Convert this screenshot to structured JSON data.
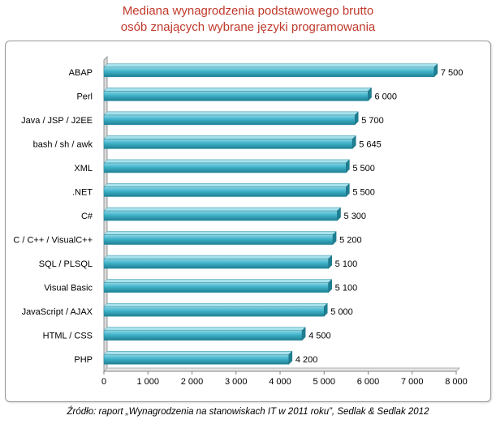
{
  "title_line1": "Mediana wynagrodzenia podstawowego brutto",
  "title_line2": "osób znających wybrane języki programowania",
  "source": "Źródło: raport „Wynagrodzenia na stanowiskach IT w 2011 roku”, Sedlak & Sedlak 2012",
  "colors": {
    "bar": "#3fb2c9",
    "bar_dark": "#1f7f92",
    "title": "#c0392b"
  },
  "chart_data": {
    "type": "bar",
    "orientation": "horizontal",
    "title": "Mediana wynagrodzenia podstawowego brutto osób znających wybrane języki programowania",
    "categories": [
      "ABAP",
      "Perl",
      "Java / JSP / J2EE",
      "bash / sh / awk",
      "XML",
      ".NET",
      "C#",
      "C / C++ / VisualC++",
      "SQL / PLSQL",
      "Visual Basic",
      "JavaScript / AJAX",
      "HTML / CSS",
      "PHP"
    ],
    "values": [
      7500,
      6000,
      5700,
      5645,
      5500,
      5500,
      5300,
      5200,
      5100,
      5100,
      5000,
      4500,
      4200
    ],
    "value_labels": [
      "7 500",
      "6 000",
      "5 700",
      "5 645",
      "5 500",
      "5 500",
      "5 300",
      "5 200",
      "5 100",
      "5 100",
      "5 000",
      "4 500",
      "4 200"
    ],
    "xlim": [
      0,
      8000
    ],
    "xticks": [
      0,
      1000,
      2000,
      3000,
      4000,
      5000,
      6000,
      7000,
      8000
    ],
    "xtick_labels": [
      "0",
      "1 000",
      "2 000",
      "3 000",
      "4 000",
      "5 000",
      "6 000",
      "7 000",
      "8 000"
    ],
    "xlabel": "",
    "ylabel": "",
    "grid": false,
    "legend": "none"
  }
}
